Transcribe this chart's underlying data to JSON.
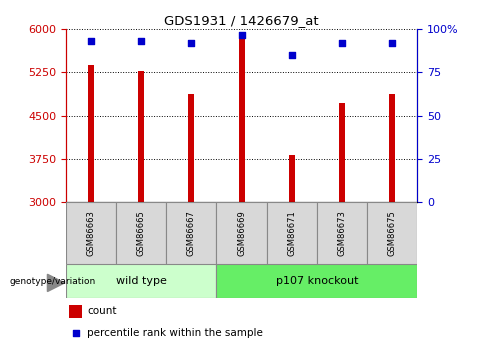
{
  "title": "GDS1931 / 1426679_at",
  "samples": [
    "GSM86663",
    "GSM86665",
    "GSM86667",
    "GSM86669",
    "GSM86671",
    "GSM86673",
    "GSM86675"
  ],
  "counts": [
    5380,
    5280,
    4870,
    5960,
    3820,
    4720,
    4870
  ],
  "percentile_ranks": [
    93,
    93,
    92,
    97,
    85,
    92,
    92
  ],
  "y_min": 3000,
  "y_max": 6000,
  "y_ticks": [
    3000,
    3750,
    4500,
    5250,
    6000
  ],
  "y_right_labels": [
    "0",
    "25",
    "50",
    "75",
    "100%"
  ],
  "bar_color": "#cc0000",
  "dot_color": "#0000cc",
  "left_tick_color": "#cc0000",
  "right_tick_color": "#0000cc",
  "group1_label": "wild type",
  "group2_label": "p107 knockout",
  "group1_indices": [
    0,
    1,
    2
  ],
  "group2_indices": [
    3,
    4,
    5,
    6
  ],
  "group1_color": "#ccffcc",
  "group2_color": "#66ee66",
  "genotype_label": "genotype/variation",
  "legend_count_label": "count",
  "legend_pct_label": "percentile rank within the sample",
  "bar_width": 0.12,
  "dot_size": 25,
  "label_box_color": "#d8d8d8"
}
